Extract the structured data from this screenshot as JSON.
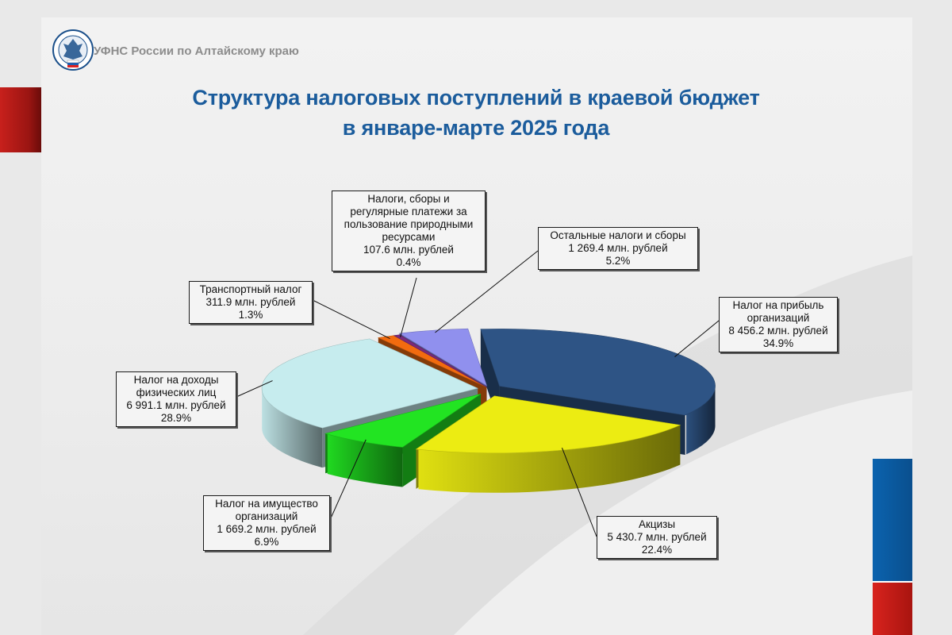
{
  "header": {
    "organization": "УФНС России по Алтайскому краю",
    "logo_icon": "fns-emblem-icon"
  },
  "title": {
    "line1": "Структура налоговых поступлений в краевой бюджет",
    "line2": "в январе-марте 2025 года"
  },
  "colors": {
    "title": "#1b5c9c",
    "accent_red": "#c8201c",
    "accent_blue": "#0b63ae"
  },
  "chart_data": {
    "type": "pie",
    "style": "3d-exploded",
    "unit": "млн. рублей",
    "slices": [
      {
        "key": "profit",
        "name": "Налог на прибыль организаций",
        "value_text": "8 456.2 млн. рублей",
        "value": 8456.2,
        "percent_text": "34.9%",
        "percent": 34.9,
        "color": "#2e5485"
      },
      {
        "key": "excise",
        "name": "Акцизы",
        "value_text": "5 430.7 млн. рублей",
        "value": 5430.7,
        "percent_text": "22.4%",
        "percent": 22.4,
        "color": "#ecec12"
      },
      {
        "key": "property",
        "name": "Налог на имущество организаций",
        "value_text": "1 669.2 млн. рублей",
        "value": 1669.2,
        "percent_text": "6.9%",
        "percent": 6.9,
        "color": "#22e422"
      },
      {
        "key": "pit",
        "name": "Налог на доходы физических лиц",
        "value_text": "6 991.1 млн. рублей",
        "value": 6991.1,
        "percent_text": "28.9%",
        "percent": 28.9,
        "color": "#c6ecee"
      },
      {
        "key": "transport",
        "name": "Транспортный налог",
        "value_text": "311.9 млн. рублей",
        "value": 311.9,
        "percent_text": "1.3%",
        "percent": 1.3,
        "color": "#f26b0f"
      },
      {
        "key": "natural",
        "name": "Налоги, сборы и регулярные платежи за пользование природными ресурсами",
        "value_text": "107.6 млн. рублей",
        "value": 107.6,
        "percent_text": "0.4%",
        "percent": 0.4,
        "color": "#7a2a7c"
      },
      {
        "key": "other",
        "name": "Остальные налоги и сборы",
        "value_text": "1 269.4 млн. рублей",
        "value": 1269.4,
        "percent_text": "5.2%",
        "percent": 5.2,
        "color": "#9090ee"
      }
    ],
    "labels": {
      "profit": [
        "Налог на прибыль",
        "организаций",
        "8 456.2 млн. рублей",
        "34.9%"
      ],
      "excise": [
        "Акцизы",
        "5 430.7 млн. рублей",
        "22.4%"
      ],
      "property": [
        "Налог на имущество",
        "организаций",
        "1 669.2 млн. рублей",
        "6.9%"
      ],
      "pit": [
        "Налог на доходы",
        "физических лиц",
        "6 991.1 млн. рублей",
        "28.9%"
      ],
      "transport": [
        "Транспортный налог",
        "311.9 млн. рублей",
        "1.3%"
      ],
      "natural": [
        "Налоги, сборы и",
        "регулярные платежи за",
        "пользование природными",
        "ресурсами",
        "107.6 млн. рублей",
        "0.4%"
      ],
      "other": [
        "Остальные налоги и сборы",
        "1 269.4 млн. рублей",
        "5.2%"
      ]
    },
    "legend": "none"
  }
}
